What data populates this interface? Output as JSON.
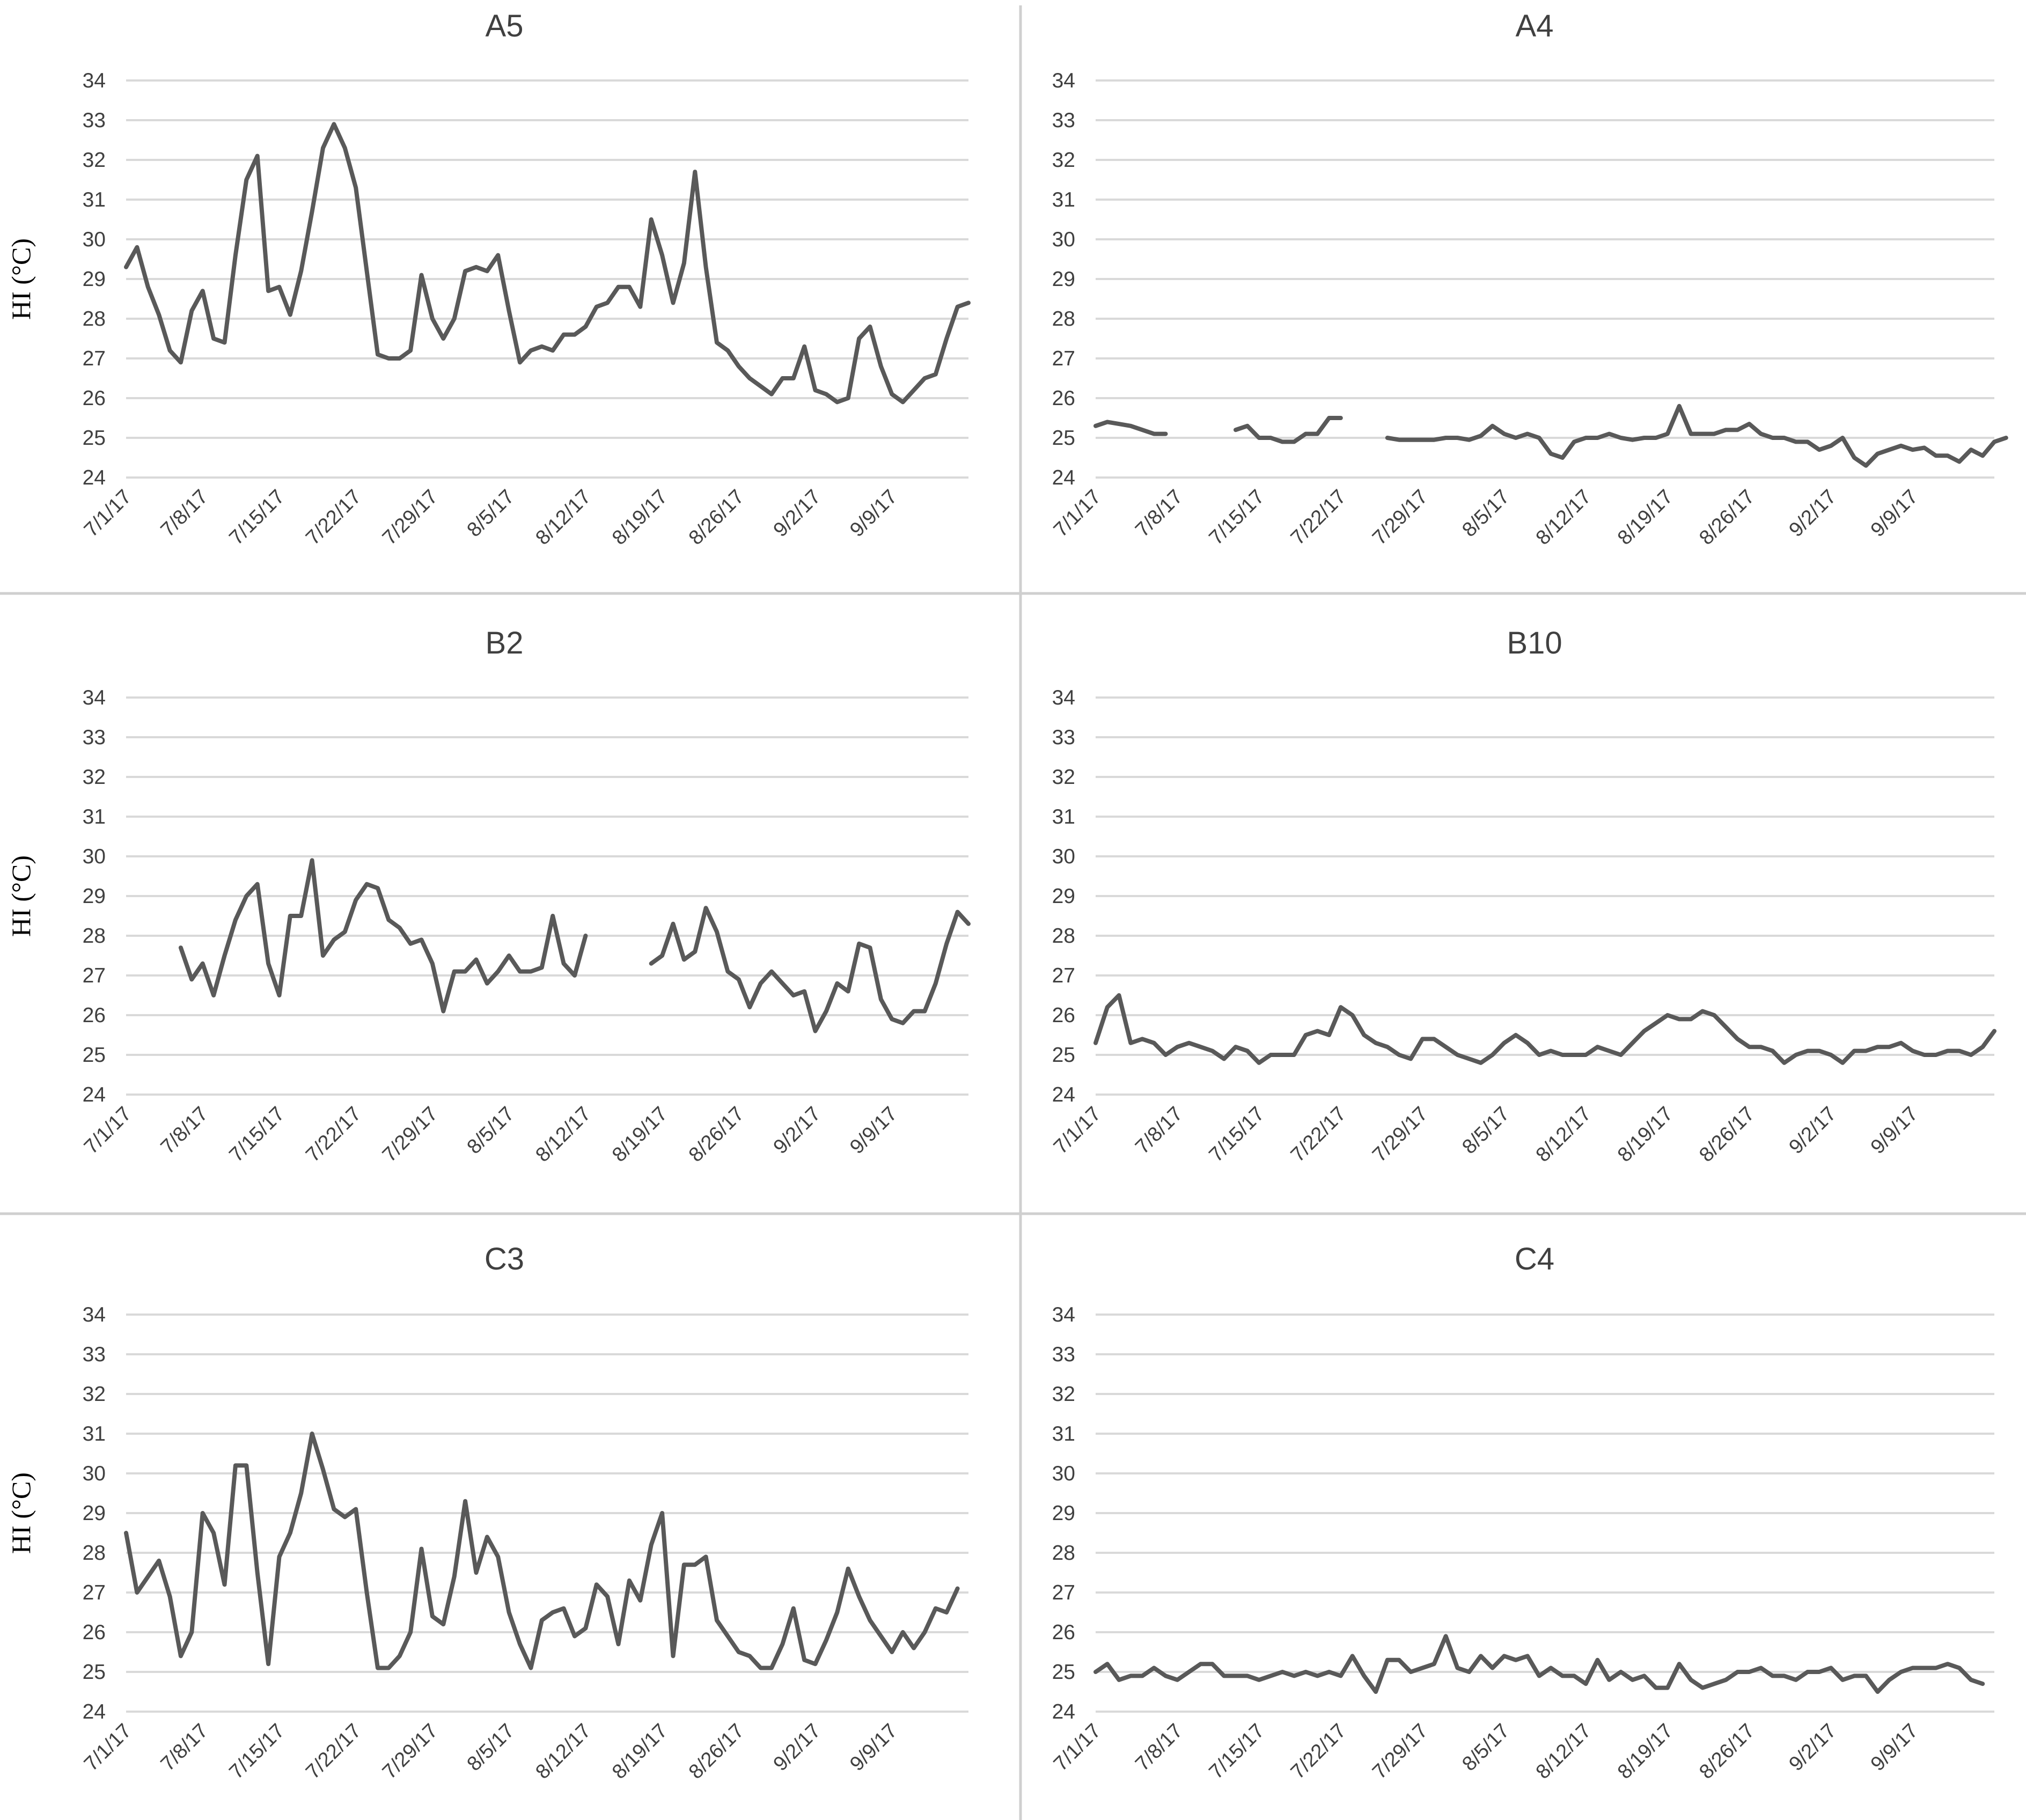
{
  "chart_data": [
    {
      "type": "line",
      "title": "A5",
      "ylabel": "HI (°C)",
      "yticks": [
        24,
        25,
        26,
        27,
        28,
        29,
        30,
        31,
        32,
        33,
        34
      ],
      "ylim": [
        24,
        34
      ],
      "xticks": [
        "7/1/17",
        "7/8/17",
        "7/15/17",
        "7/22/17",
        "7/29/17",
        "8/5/17",
        "8/12/17",
        "8/19/17",
        "8/26/17",
        "9/2/17",
        "9/9/17"
      ],
      "xtick_day": [
        0,
        7,
        14,
        21,
        28,
        35,
        42,
        49,
        56,
        63,
        70
      ],
      "grid": true,
      "legend": "none",
      "series": [
        {
          "start_date": "7/1/17",
          "color": "#595959",
          "values": [
            29.3,
            29.8,
            28.8,
            28.1,
            27.2,
            26.9,
            28.2,
            28.7,
            27.5,
            27.4,
            29.6,
            31.5,
            32.1,
            28.7,
            28.8,
            28.1,
            29.2,
            30.7,
            32.3,
            32.9,
            32.3,
            31.3,
            29.2,
            27.1,
            27.0,
            27.0,
            27.2,
            29.1,
            28.0,
            27.5,
            28.0,
            29.2,
            29.3,
            29.2,
            29.6,
            28.2,
            26.9,
            27.2,
            27.3,
            27.2,
            27.6,
            27.6,
            27.8,
            28.3,
            28.4,
            28.8,
            28.8,
            28.3,
            30.5,
            29.6,
            28.4,
            29.4,
            31.7,
            29.3,
            27.4,
            27.2,
            26.8,
            26.5,
            26.3,
            26.1,
            26.5,
            26.5,
            27.3,
            26.2,
            26.1,
            25.9,
            26.0,
            27.5,
            27.8,
            26.8,
            26.1,
            25.9,
            26.2,
            26.5,
            26.6,
            27.5,
            28.3,
            28.4
          ]
        }
      ]
    },
    {
      "type": "line",
      "title": "A4",
      "ylabel": "",
      "yticks": [
        24,
        25,
        26,
        27,
        28,
        29,
        30,
        31,
        32,
        33,
        34
      ],
      "ylim": [
        24,
        34
      ],
      "xticks": [
        "7/1/17",
        "7/8/17",
        "7/15/17",
        "7/22/17",
        "7/29/17",
        "8/5/17",
        "8/12/17",
        "8/19/17",
        "8/26/17",
        "9/2/17",
        "9/9/17"
      ],
      "xtick_day": [
        0,
        7,
        14,
        21,
        28,
        35,
        42,
        49,
        56,
        63,
        70
      ],
      "grid": true,
      "legend": "none",
      "series": [
        {
          "start_date": "7/1/17",
          "color": "#595959",
          "values": [
            25.3,
            25.4,
            25.35,
            25.3,
            25.2,
            25.1,
            25.1,
            null,
            null,
            null,
            null,
            null,
            25.2,
            25.3,
            25.0,
            25.0,
            24.9,
            24.9,
            25.1,
            25.1,
            25.5,
            25.5,
            null,
            null,
            null,
            25.0,
            24.95,
            24.95,
            24.95,
            24.95,
            25.0,
            25.0,
            24.95,
            25.05,
            25.3,
            25.1,
            25.0,
            25.1,
            25.0,
            24.6,
            24.5,
            24.9,
            25.0,
            25.0,
            25.1,
            25.0,
            24.95,
            25.0,
            25.0,
            25.1,
            25.8,
            25.1,
            25.1,
            25.1,
            25.2,
            25.2,
            25.35,
            25.1,
            25.0,
            25.0,
            24.9,
            24.9,
            24.7,
            24.8,
            25.0,
            24.5,
            24.3,
            24.6,
            24.7,
            24.8,
            24.7,
            24.75,
            24.55,
            24.55,
            24.4,
            24.7,
            24.55,
            24.9,
            25.0
          ]
        }
      ]
    },
    {
      "type": "line",
      "title": "B2",
      "ylabel": "HI (°C)",
      "yticks": [
        24,
        25,
        26,
        27,
        28,
        29,
        30,
        31,
        32,
        33,
        34
      ],
      "ylim": [
        24,
        34
      ],
      "xticks": [
        "7/1/17",
        "7/8/17",
        "7/15/17",
        "7/22/17",
        "7/29/17",
        "8/5/17",
        "8/12/17",
        "8/19/17",
        "8/26/17",
        "9/2/17",
        "9/9/17"
      ],
      "xtick_day": [
        0,
        7,
        14,
        21,
        28,
        35,
        42,
        49,
        56,
        63,
        70
      ],
      "grid": true,
      "legend": "none",
      "series": [
        {
          "start_date": "7/1/17",
          "color": "#595959",
          "values": [
            null,
            null,
            null,
            null,
            null,
            27.7,
            26.9,
            27.3,
            26.5,
            27.5,
            28.4,
            29.0,
            29.3,
            27.3,
            26.5,
            28.5,
            28.5,
            29.9,
            27.5,
            27.9,
            28.1,
            28.9,
            29.3,
            29.2,
            28.4,
            28.2,
            27.8,
            27.9,
            27.3,
            26.1,
            27.1,
            27.1,
            27.4,
            26.8,
            27.1,
            27.5,
            27.1,
            27.1,
            27.2,
            28.5,
            27.3,
            27.0,
            28.0,
            null,
            null,
            null,
            null,
            null,
            27.3,
            27.5,
            28.3,
            27.4,
            27.6,
            28.7,
            28.1,
            27.1,
            26.9,
            26.2,
            26.8,
            27.1,
            26.8,
            26.5,
            26.6,
            25.6,
            26.1,
            26.8,
            26.6,
            27.8,
            27.7,
            26.4,
            25.9,
            25.8,
            26.1,
            26.1,
            26.8,
            27.8,
            28.6,
            28.3
          ]
        }
      ]
    },
    {
      "type": "line",
      "title": "B10",
      "ylabel": "",
      "yticks": [
        24,
        25,
        26,
        27,
        28,
        29,
        30,
        31,
        32,
        33,
        34
      ],
      "ylim": [
        24,
        34
      ],
      "xticks": [
        "7/1/17",
        "7/8/17",
        "7/15/17",
        "7/22/17",
        "7/29/17",
        "8/5/17",
        "8/12/17",
        "8/19/17",
        "8/26/17",
        "9/2/17",
        "9/9/17"
      ],
      "xtick_day": [
        0,
        7,
        14,
        21,
        28,
        35,
        42,
        49,
        56,
        63,
        70
      ],
      "grid": true,
      "legend": "none",
      "series": [
        {
          "start_date": "7/1/17",
          "color": "#595959",
          "values": [
            25.3,
            26.2,
            26.5,
            25.3,
            25.4,
            25.3,
            25.0,
            25.2,
            25.3,
            25.2,
            25.1,
            24.9,
            25.2,
            25.1,
            24.8,
            25.0,
            25.0,
            25.0,
            25.5,
            25.6,
            25.5,
            26.2,
            26.0,
            25.5,
            25.3,
            25.2,
            25.0,
            24.9,
            25.4,
            25.4,
            25.2,
            25.0,
            24.9,
            24.8,
            25.0,
            25.3,
            25.5,
            25.3,
            25.0,
            25.1,
            25.0,
            25.0,
            25.0,
            25.2,
            25.1,
            25.0,
            25.3,
            25.6,
            25.8,
            26.0,
            25.9,
            25.9,
            26.1,
            26.0,
            25.7,
            25.4,
            25.2,
            25.2,
            25.1,
            24.8,
            25.0,
            25.1,
            25.1,
            25.0,
            24.8,
            25.1,
            25.1,
            25.2,
            25.2,
            25.3,
            25.1,
            25.0,
            25.0,
            25.1,
            25.1,
            25.0,
            25.2,
            25.6
          ]
        }
      ]
    },
    {
      "type": "line",
      "title": "C3",
      "ylabel": "HI (°C)",
      "yticks": [
        24,
        25,
        26,
        27,
        28,
        29,
        30,
        31,
        32,
        33,
        34
      ],
      "ylim": [
        24,
        34
      ],
      "xticks": [
        "7/1/17",
        "7/8/17",
        "7/15/17",
        "7/22/17",
        "7/29/17",
        "8/5/17",
        "8/12/17",
        "8/19/17",
        "8/26/17",
        "9/2/17",
        "9/9/17"
      ],
      "xtick_day": [
        0,
        7,
        14,
        21,
        28,
        35,
        42,
        49,
        56,
        63,
        70
      ],
      "grid": true,
      "legend": "none",
      "series": [
        {
          "start_date": "7/1/17",
          "color": "#595959",
          "values": [
            28.5,
            27.0,
            27.4,
            27.8,
            26.9,
            25.4,
            26.0,
            29.0,
            28.5,
            27.2,
            30.2,
            30.2,
            27.5,
            25.2,
            27.9,
            28.5,
            29.5,
            31.0,
            30.1,
            29.1,
            28.9,
            29.1,
            27.0,
            25.1,
            25.1,
            25.4,
            26.0,
            28.1,
            26.4,
            26.2,
            27.4,
            29.3,
            27.5,
            28.4,
            27.9,
            26.5,
            25.7,
            25.1,
            26.3,
            26.5,
            26.6,
            25.9,
            26.1,
            27.2,
            26.9,
            25.7,
            27.3,
            26.8,
            28.2,
            29.0,
            25.4,
            27.7,
            27.7,
            27.9,
            26.3,
            25.9,
            25.5,
            25.4,
            25.1,
            25.1,
            25.7,
            26.6,
            25.3,
            25.2,
            25.8,
            26.5,
            27.6,
            26.9,
            26.3,
            25.9,
            25.5,
            26.0,
            25.6,
            26.0,
            26.6,
            26.5,
            27.1
          ]
        }
      ]
    },
    {
      "type": "line",
      "title": "C4",
      "ylabel": "",
      "yticks": [
        24,
        25,
        26,
        27,
        28,
        29,
        30,
        31,
        32,
        33,
        34
      ],
      "ylim": [
        24,
        34
      ],
      "xticks": [
        "7/1/17",
        "7/8/17",
        "7/15/17",
        "7/22/17",
        "7/29/17",
        "8/5/17",
        "8/12/17",
        "8/19/17",
        "8/26/17",
        "9/2/17",
        "9/9/17"
      ],
      "xtick_day": [
        0,
        7,
        14,
        21,
        28,
        35,
        42,
        49,
        56,
        63,
        70
      ],
      "grid": true,
      "legend": "none",
      "series": [
        {
          "start_date": "7/1/17",
          "color": "#595959",
          "values": [
            25.0,
            25.2,
            24.8,
            24.9,
            24.9,
            25.1,
            24.9,
            24.8,
            25.0,
            25.2,
            25.2,
            24.9,
            24.9,
            24.9,
            24.8,
            24.9,
            25.0,
            24.9,
            25.0,
            24.9,
            25.0,
            24.9,
            25.4,
            24.9,
            24.5,
            25.3,
            25.3,
            25.0,
            25.1,
            25.2,
            25.9,
            25.1,
            25.0,
            25.4,
            25.1,
            25.4,
            25.3,
            25.4,
            24.9,
            25.1,
            24.9,
            24.9,
            24.7,
            25.3,
            24.8,
            25.0,
            24.8,
            24.9,
            24.6,
            24.6,
            25.2,
            24.8,
            24.6,
            24.7,
            24.8,
            25.0,
            25.0,
            25.1,
            24.9,
            24.9,
            24.8,
            25.0,
            25.0,
            25.1,
            24.8,
            24.9,
            24.9,
            24.5,
            24.8,
            25.0,
            25.1,
            25.1,
            25.1,
            25.2,
            25.1,
            24.8,
            24.7
          ]
        }
      ]
    }
  ]
}
